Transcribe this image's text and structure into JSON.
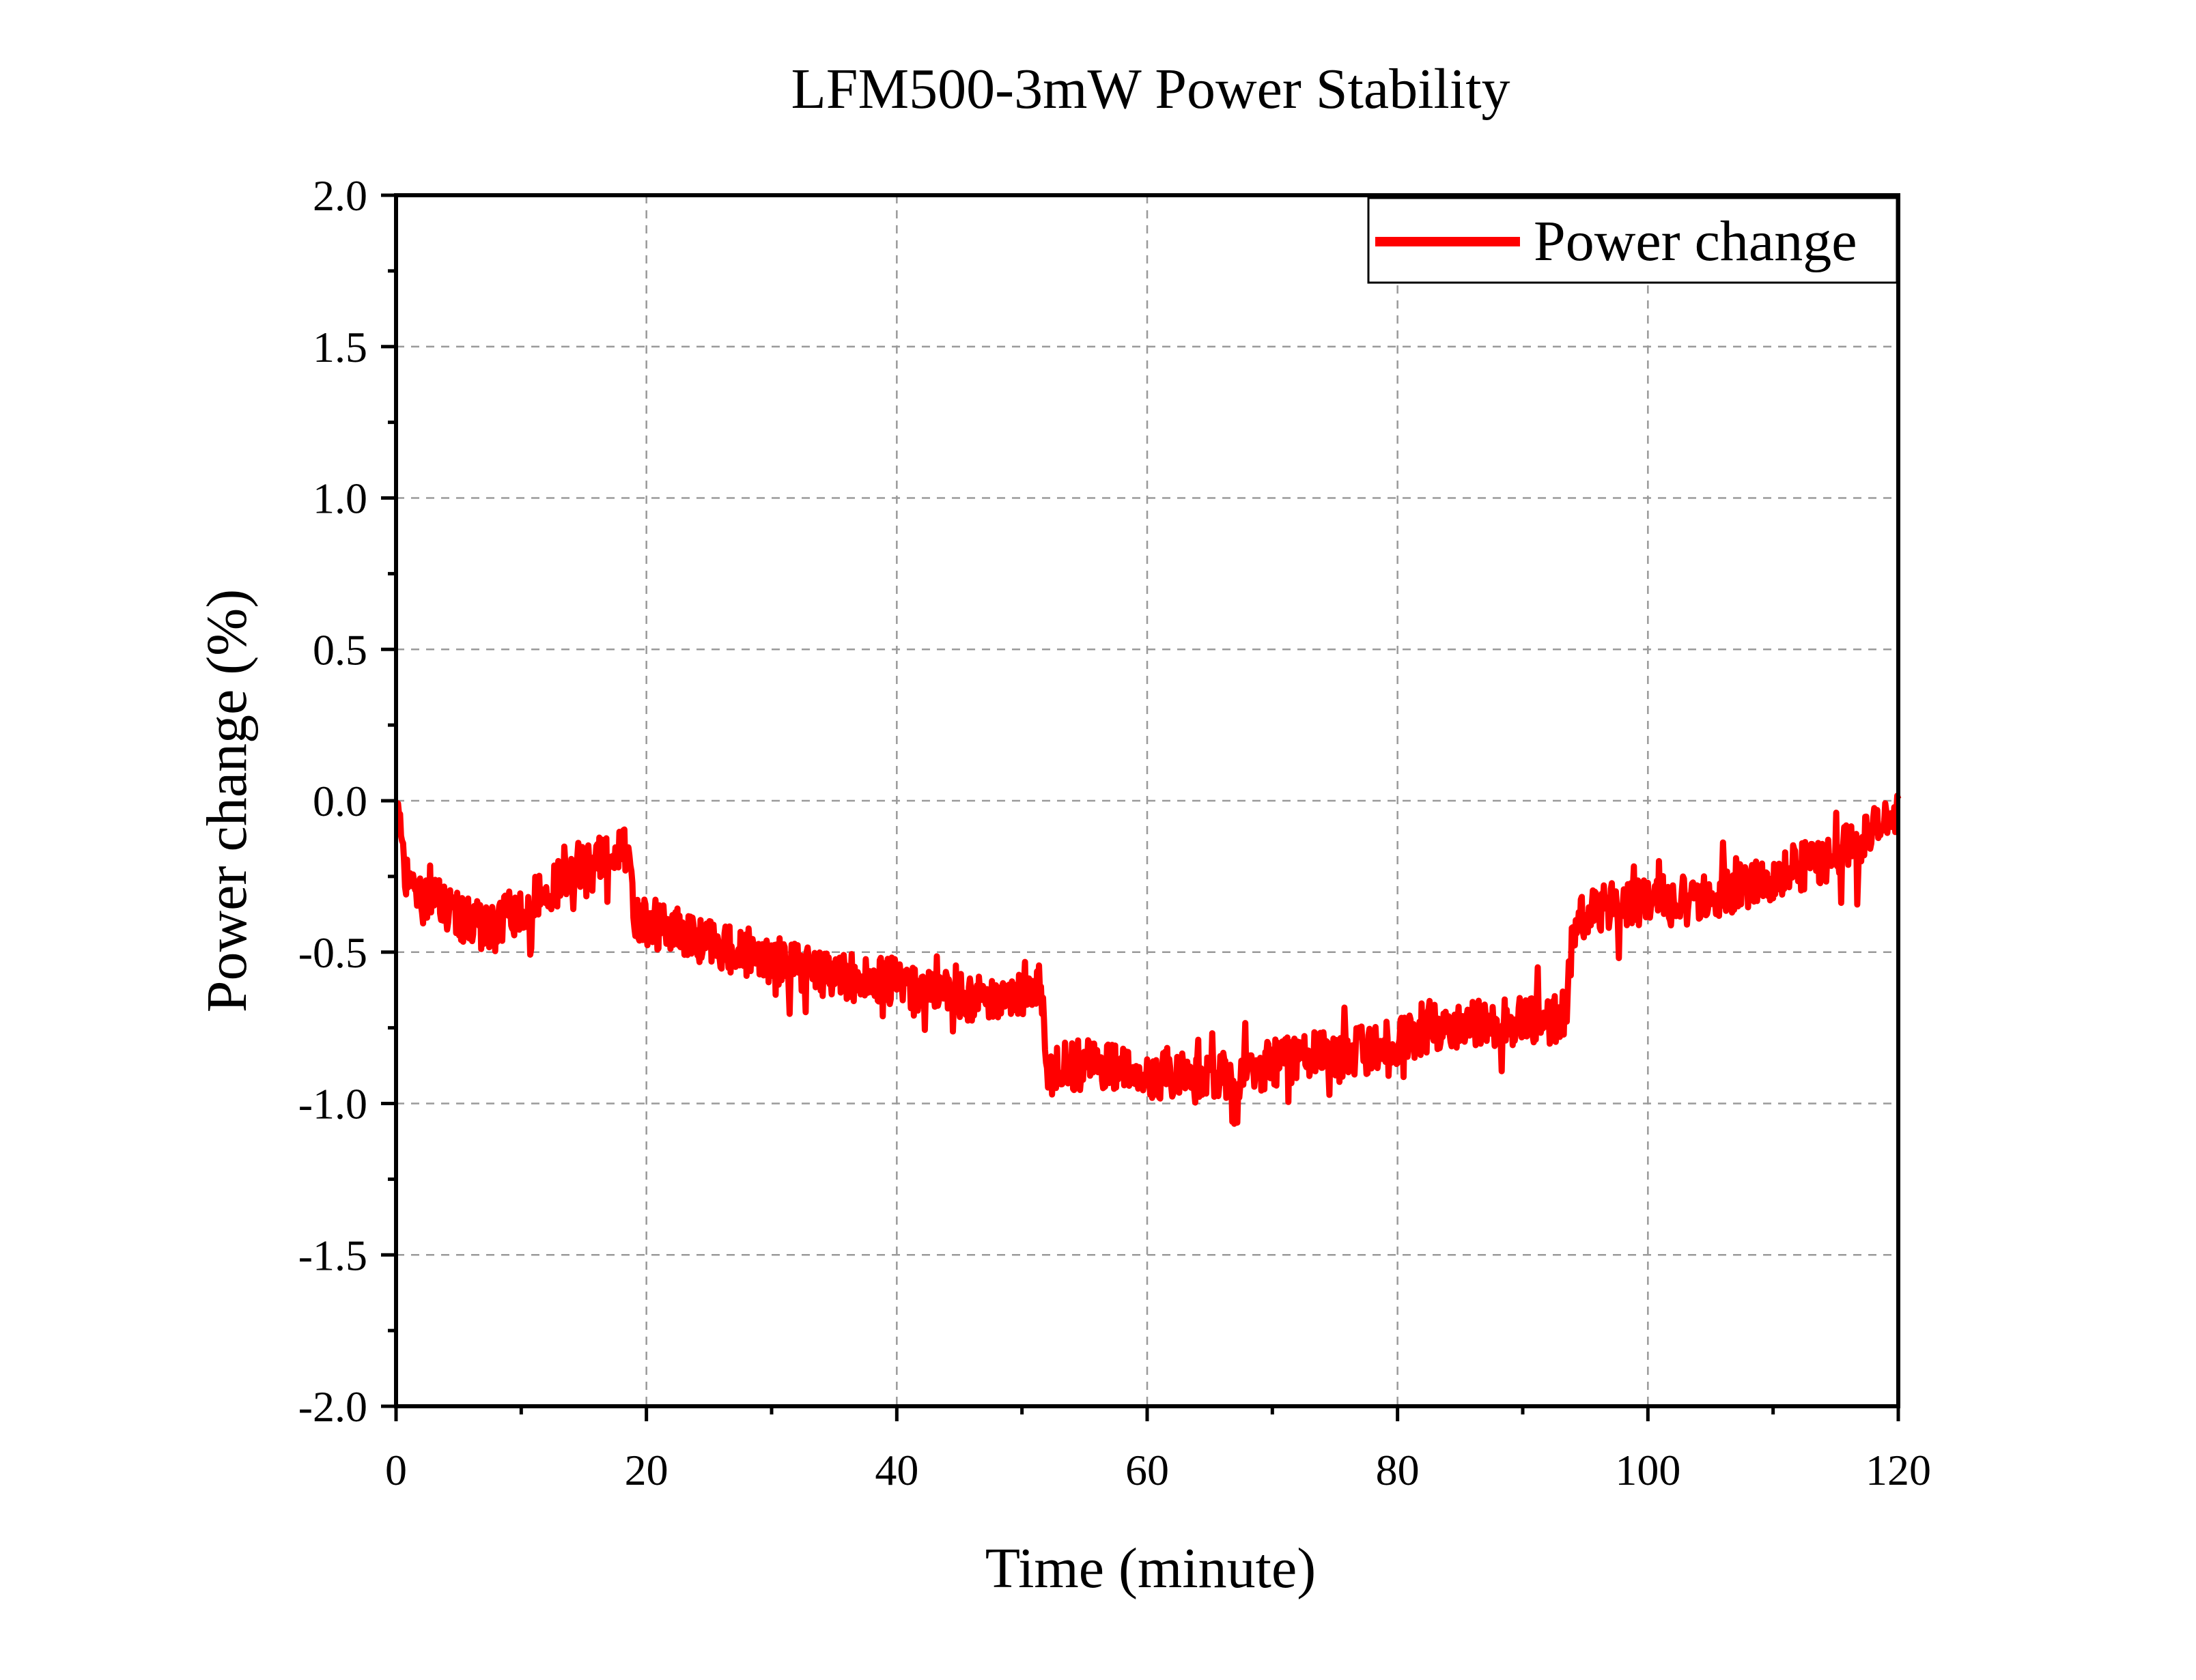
{
  "chart_data": {
    "type": "line",
    "title": "LFM500-3mW Power Stability",
    "xlabel": "Time (minute)",
    "ylabel": "Power change (%)",
    "xlim": [
      0,
      120
    ],
    "ylim": [
      -2.0,
      2.0
    ],
    "x_ticks": [
      0,
      20,
      40,
      60,
      80,
      100,
      120
    ],
    "x_tick_labels": [
      "0",
      "20",
      "40",
      "60",
      "80",
      "100",
      "120"
    ],
    "y_ticks": [
      2.0,
      1.5,
      1.0,
      0.5,
      0.0,
      -0.5,
      -1.0,
      -1.5,
      -2.0
    ],
    "y_tick_labels": [
      "2.0",
      "1.5",
      "1.0",
      "0.5",
      "0.0",
      "-0.5",
      "-1.0",
      "-1.5",
      "-2.0"
    ],
    "grid": true,
    "legend": {
      "position": "top-right"
    },
    "series": [
      {
        "name": "Power change",
        "color": "#ff0000",
        "x": [
          0,
          1,
          2,
          3,
          4,
          5,
          6,
          7,
          8,
          9,
          10,
          11,
          12,
          13,
          14,
          15,
          16,
          17,
          18,
          18.6,
          19,
          20,
          22,
          24,
          26,
          28,
          30,
          32,
          34,
          36,
          38,
          40,
          42,
          44,
          46,
          48,
          50,
          51.5,
          52,
          52.5,
          54,
          56,
          58,
          60,
          62,
          64,
          66,
          68,
          70,
          72,
          74,
          76,
          78,
          80,
          82,
          84,
          86,
          88,
          90,
          92,
          93.5,
          94,
          94.5,
          96,
          98,
          100,
          102,
          104,
          106,
          108,
          110,
          112,
          114,
          116,
          118,
          120
        ],
        "values": [
          -0.05,
          -0.28,
          -0.33,
          -0.3,
          -0.36,
          -0.4,
          -0.4,
          -0.42,
          -0.42,
          -0.38,
          -0.36,
          -0.33,
          -0.3,
          -0.27,
          -0.22,
          -0.2,
          -0.18,
          -0.17,
          -0.16,
          -0.18,
          -0.38,
          -0.4,
          -0.43,
          -0.45,
          -0.48,
          -0.5,
          -0.52,
          -0.55,
          -0.57,
          -0.58,
          -0.59,
          -0.6,
          -0.62,
          -0.63,
          -0.65,
          -0.65,
          -0.64,
          -0.62,
          -0.88,
          -0.9,
          -0.88,
          -0.88,
          -0.89,
          -0.9,
          -0.91,
          -0.92,
          -0.91,
          -0.9,
          -0.87,
          -0.85,
          -0.84,
          -0.83,
          -0.82,
          -0.8,
          -0.76,
          -0.74,
          -0.73,
          -0.73,
          -0.73,
          -0.73,
          -0.7,
          -0.45,
          -0.38,
          -0.35,
          -0.34,
          -0.33,
          -0.32,
          -0.31,
          -0.3,
          -0.28,
          -0.25,
          -0.22,
          -0.2,
          -0.15,
          -0.1,
          -0.05
        ]
      }
    ]
  }
}
